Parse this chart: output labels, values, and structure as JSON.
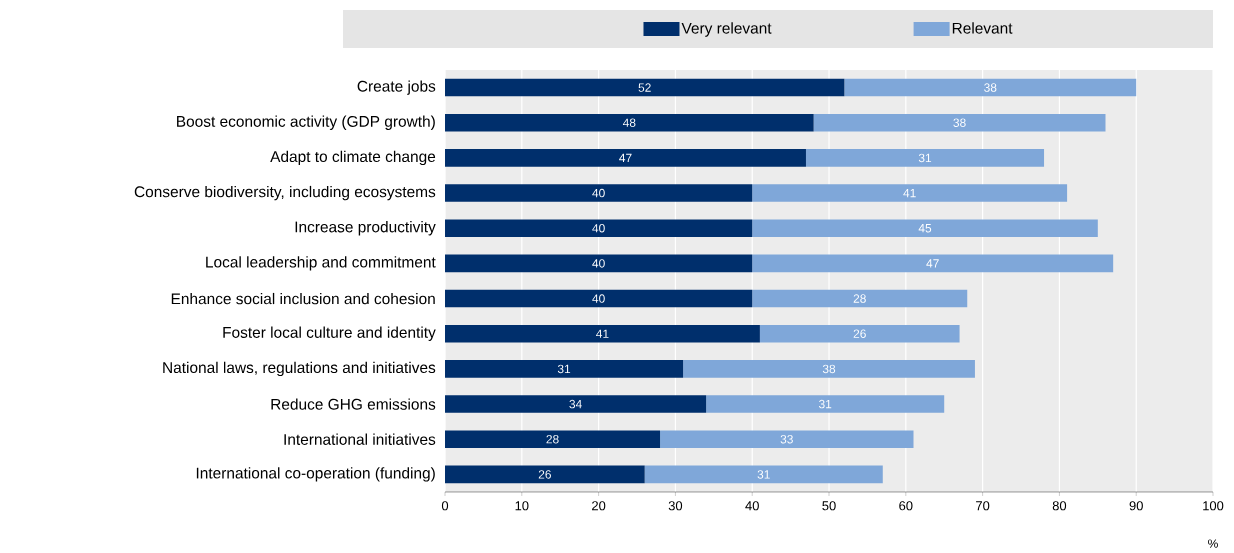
{
  "chart_data": {
    "type": "bar",
    "orientation": "horizontal",
    "stacked": true,
    "data_labels": true,
    "grid": "x",
    "legend": "top",
    "xlabel": "%",
    "categories": [
      "Create jobs",
      "Boost economic activity (GDP growth)",
      "Adapt to climate change",
      "Conserve biodiversity, including ecosystems",
      "Increase productivity",
      "Local leadership and commitment",
      "Enhance social inclusion and cohesion",
      "Foster local culture and identity",
      "National laws, regulations and initiatives",
      "Reduce GHG emissions",
      "International initiatives",
      "International co-operation (funding)"
    ],
    "series": [
      {
        "name": "Very relevant",
        "color": "#002f6c",
        "values": [
          52,
          48,
          47,
          40,
          40,
          40,
          40,
          41,
          31,
          34,
          28,
          26
        ]
      },
      {
        "name": "Relevant",
        "color": "#7fa7d9",
        "values": [
          38,
          38,
          31,
          41,
          45,
          47,
          28,
          26,
          38,
          31,
          33,
          31
        ]
      }
    ],
    "xlim": [
      0,
      100
    ],
    "xticks": [
      0,
      10,
      20,
      30,
      40,
      50,
      60,
      70,
      80,
      90,
      100
    ]
  }
}
